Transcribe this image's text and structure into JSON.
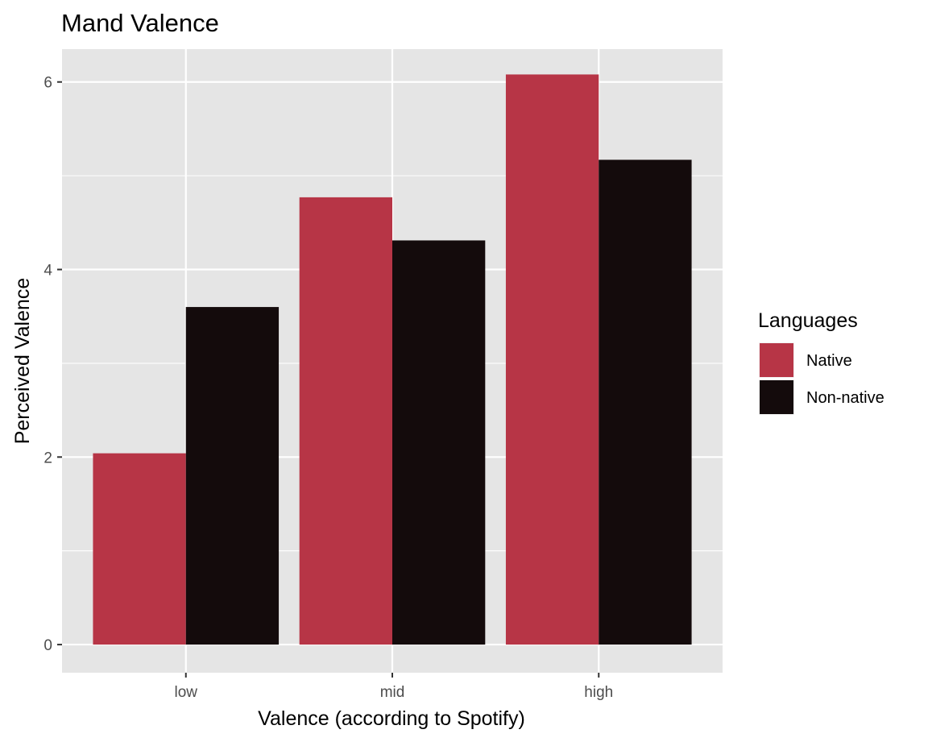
{
  "chart_data": {
    "type": "bar",
    "title": "Mand Valence",
    "xlabel": "Valence (according to Spotify)",
    "ylabel": "Perceived Valence",
    "categories": [
      "low",
      "mid",
      "high"
    ],
    "series": [
      {
        "name": "Native",
        "values": [
          2.04,
          4.77,
          6.08
        ],
        "color": "#b73546"
      },
      {
        "name": "Non-native",
        "values": [
          3.6,
          4.31,
          5.17
        ],
        "color": "#140b0c"
      }
    ],
    "ylim": [
      -0.3,
      6.35
    ],
    "yticks": [
      0,
      2,
      4,
      6
    ],
    "grid": true,
    "panel_background": "#e5e5e5",
    "legend": {
      "title": "Languages",
      "position": "right"
    }
  }
}
